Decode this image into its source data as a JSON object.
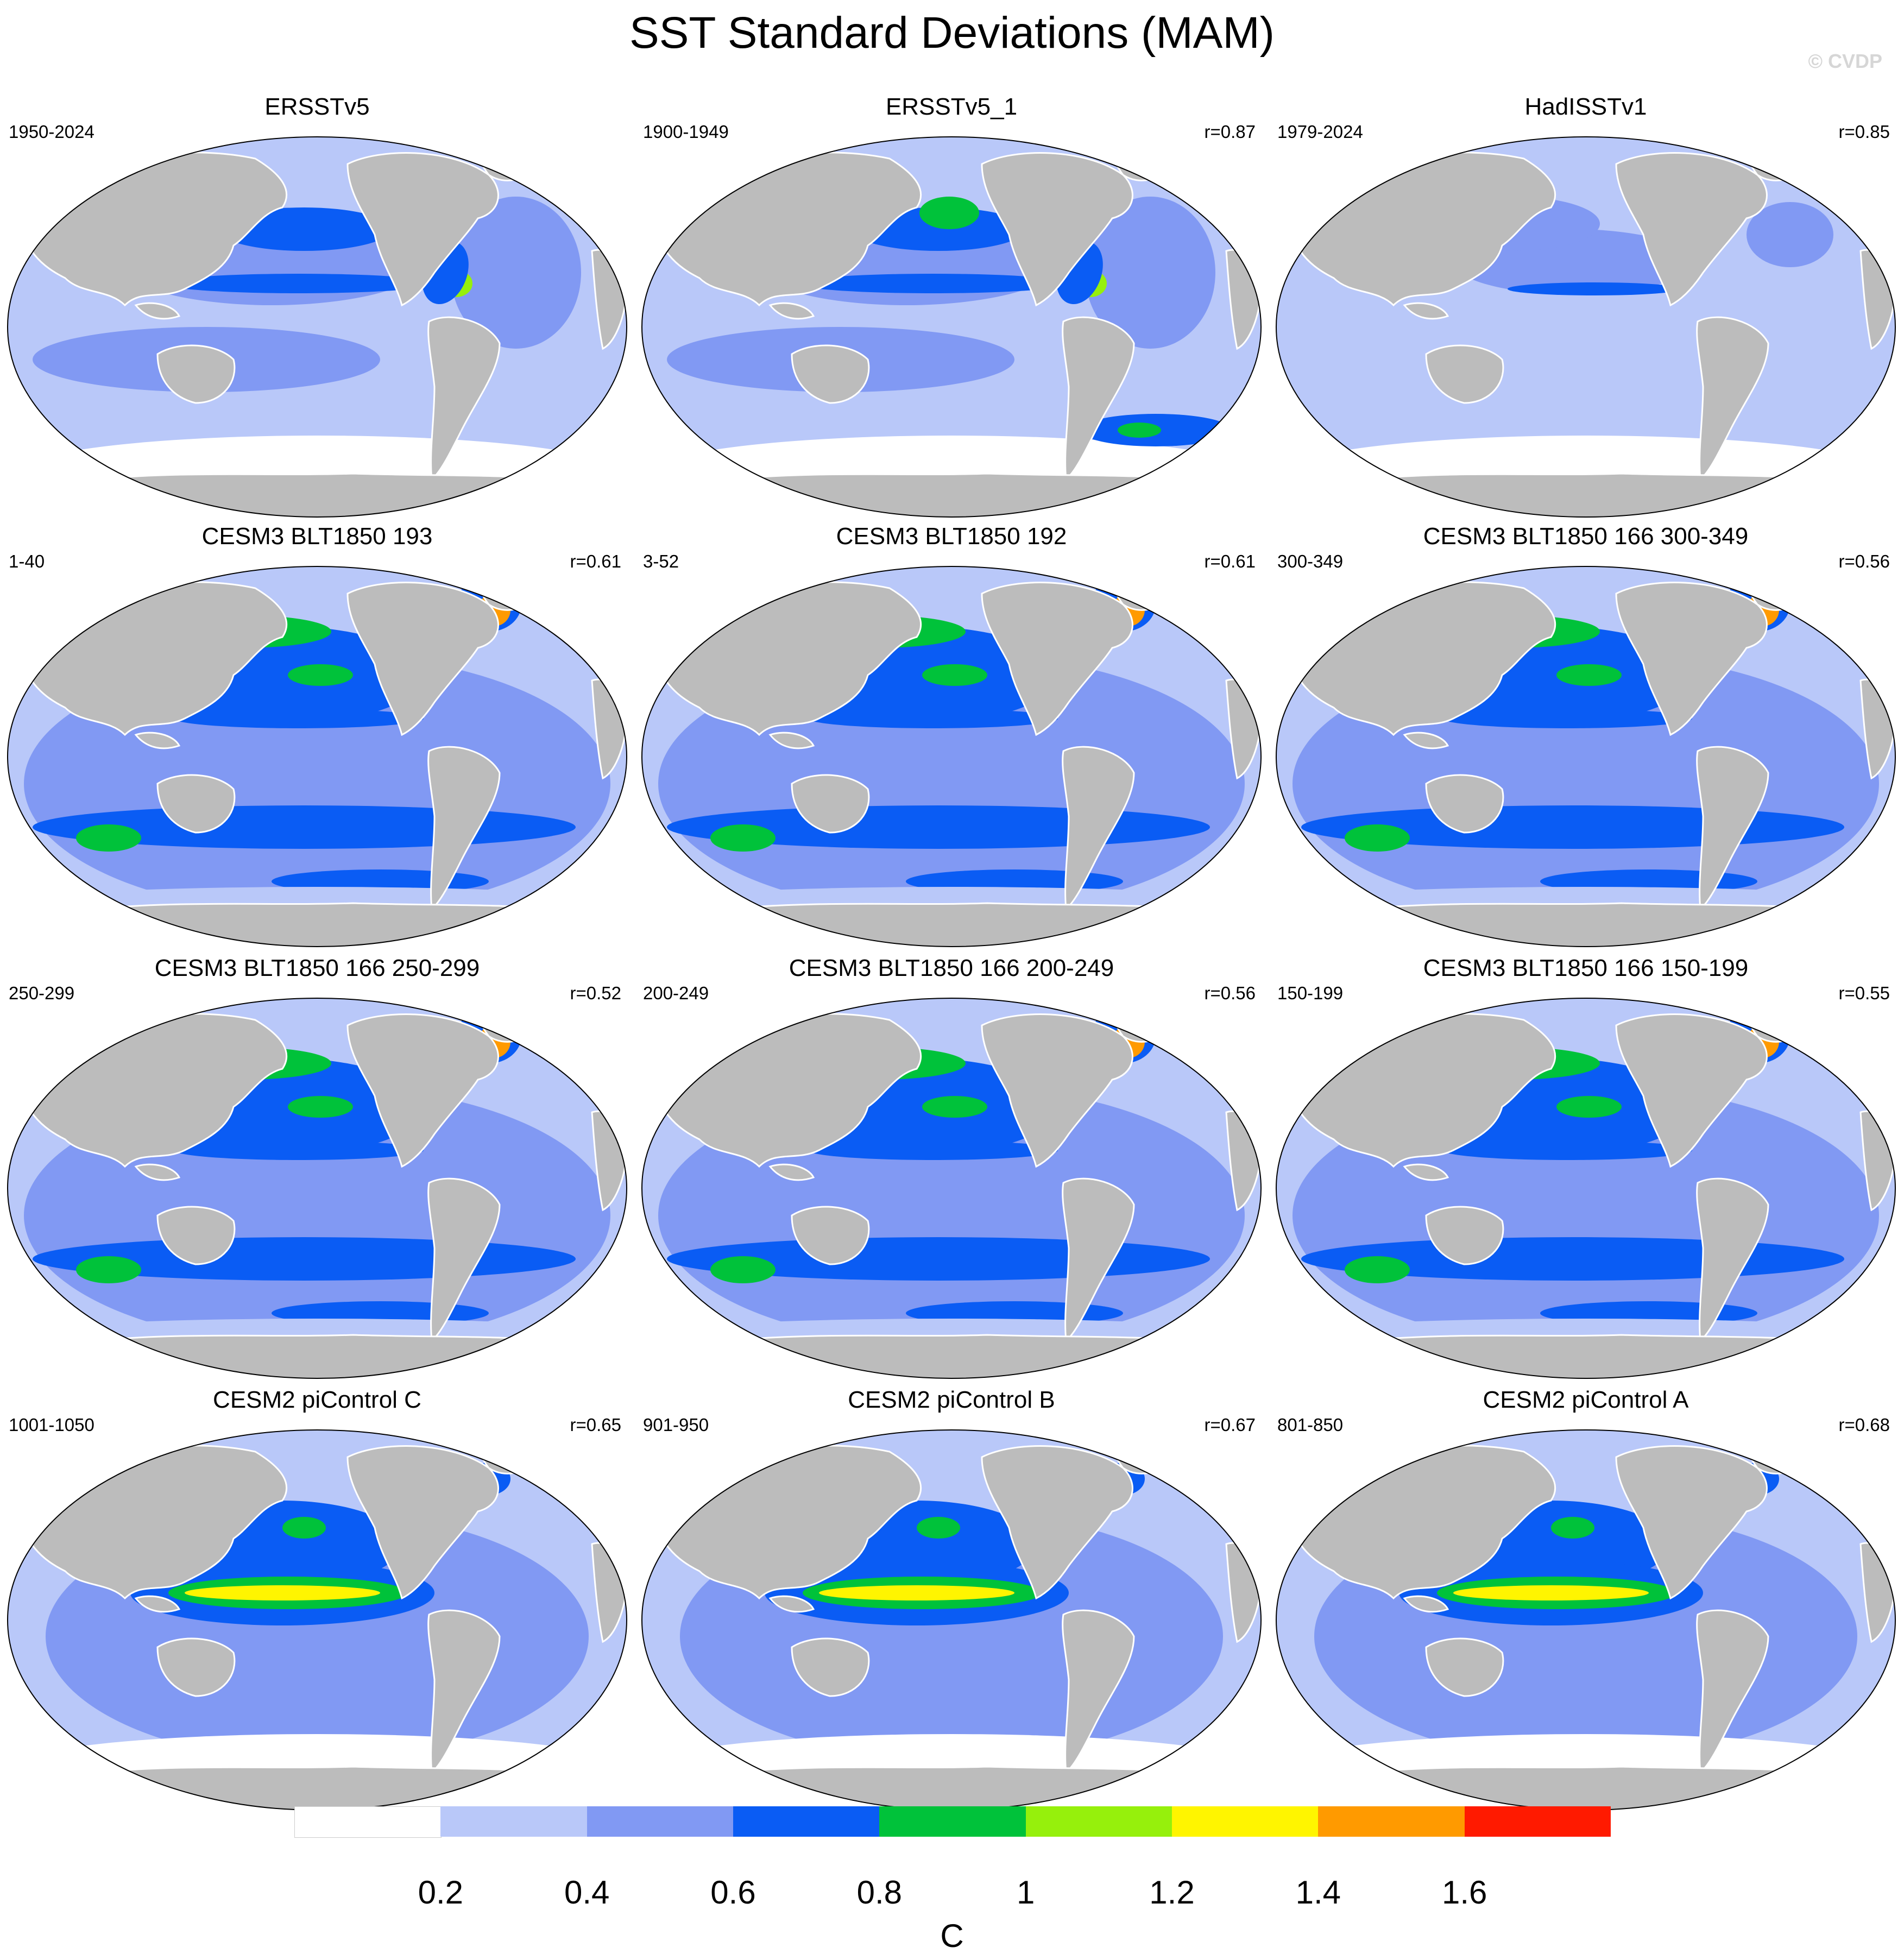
{
  "title": "SST Standard Deviations (MAM)",
  "watermark": "© CVDP",
  "colors": {
    "land": "#bcbcbc",
    "levels": [
      "#ffffff",
      "#b9c8f9",
      "#8199f3",
      "#0a5cf4",
      "#00c23a",
      "#96f00c",
      "#fff500",
      "#ff9a00",
      "#ff1a00"
    ]
  },
  "panels": [
    {
      "title": "ERSSTv5",
      "period": "1950-2024",
      "r": "",
      "pattern": "obs"
    },
    {
      "title": "ERSSTv5_1",
      "period": "1900-1949",
      "r": "r=0.87",
      "pattern": "obs_early"
    },
    {
      "title": "HadISSTv1",
      "period": "1979-2024",
      "r": "r=0.85",
      "pattern": "had"
    },
    {
      "title": "CESM3 BLT1850 193",
      "period": "1-40",
      "r": "r=0.61",
      "pattern": "cesm3"
    },
    {
      "title": "CESM3 BLT1850 192",
      "period": "3-52",
      "r": "r=0.61",
      "pattern": "cesm3"
    },
    {
      "title": "CESM3 BLT1850 166 300-349",
      "period": "300-349",
      "r": "r=0.56",
      "pattern": "cesm3"
    },
    {
      "title": "CESM3 BLT1850 166 250-299",
      "period": "250-299",
      "r": "r=0.52",
      "pattern": "cesm3"
    },
    {
      "title": "CESM3 BLT1850 166 200-249",
      "period": "200-249",
      "r": "r=0.56",
      "pattern": "cesm3"
    },
    {
      "title": "CESM3 BLT1850 166 150-199",
      "period": "150-199",
      "r": "r=0.55",
      "pattern": "cesm3"
    },
    {
      "title": "CESM2 piControl C",
      "period": "1001-1050",
      "r": "r=0.65",
      "pattern": "cesm2"
    },
    {
      "title": "CESM2 piControl B",
      "period": "901-950",
      "r": "r=0.67",
      "pattern": "cesm2"
    },
    {
      "title": "CESM2 piControl A",
      "period": "801-850",
      "r": "r=0.68",
      "pattern": "cesm2"
    }
  ],
  "colorbar": {
    "labels": [
      "0.2",
      "0.4",
      "0.6",
      "0.8",
      "1",
      "1.2",
      "1.4",
      "1.6"
    ],
    "unit": "C"
  }
}
